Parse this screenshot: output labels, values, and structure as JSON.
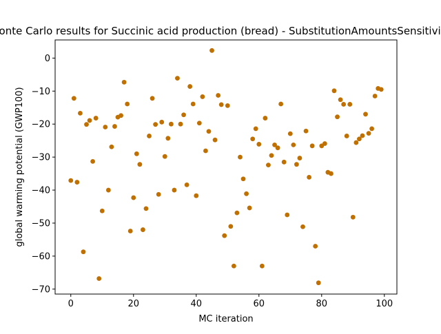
{
  "chart_data": {
    "type": "scatter",
    "title": "Monte Carlo results for Succinic acid production (bread) - SubstitutionAmountsSensitivity",
    "xlabel": "MC iteration",
    "ylabel": "global warming potential (GWP100)",
    "xlim": [
      -5,
      104
    ],
    "ylim": [
      -71.5,
      5.5
    ],
    "xticks": [
      0,
      20,
      40,
      60,
      80,
      100
    ],
    "yticks": [
      0,
      -10,
      -20,
      -30,
      -40,
      -50,
      -60,
      -70
    ],
    "grid": false,
    "legend": "none",
    "marker_color": "#bf7000",
    "series": [
      {
        "x": [
          0,
          1,
          2,
          3,
          4,
          5,
          6,
          7,
          8,
          9,
          10,
          11,
          12,
          13,
          14,
          15,
          16,
          17,
          18,
          19,
          20,
          21,
          22,
          23,
          24,
          25,
          26,
          27,
          28,
          29,
          30,
          31,
          32,
          33,
          34,
          35,
          36,
          37,
          38,
          39,
          40,
          41,
          42,
          43,
          44,
          45,
          46,
          47,
          48,
          49,
          50,
          51,
          52,
          53,
          54,
          55,
          56,
          57,
          58,
          59,
          60,
          61,
          62,
          63,
          64,
          65,
          66,
          67,
          68,
          69,
          70,
          71,
          72,
          73,
          74,
          75,
          76,
          77,
          78,
          79,
          80,
          81,
          82,
          83,
          84,
          85,
          86,
          87,
          88,
          89,
          90,
          91,
          92,
          93,
          94,
          95,
          96,
          97,
          98,
          99
        ],
        "y": [
          -37.1,
          -12.2,
          -37.6,
          -16.7,
          -58.7,
          -20.1,
          -18.9,
          -31.3,
          -18.2,
          -66.8,
          -46.3,
          -20.9,
          -40,
          -26.9,
          -20.7,
          -17.9,
          -17.4,
          -7.3,
          -13.9,
          -52.4,
          -42.3,
          -29,
          -32.2,
          -52,
          -45.6,
          -23.6,
          -12.2,
          -20.1,
          -41.3,
          -19.4,
          -29.8,
          -24.3,
          -20,
          -40,
          -6.1,
          -20,
          -17.2,
          -38.4,
          -8.6,
          -13.9,
          -41.7,
          -19.7,
          -11.7,
          -28.1,
          -22.2,
          2.3,
          -24.8,
          -11.3,
          -14.1,
          -53.8,
          -14.4,
          -51,
          -63,
          -46.9,
          -30,
          -36.6,
          -41.1,
          -45.4,
          -24.5,
          -21.4,
          -26.1,
          -63,
          -18.2,
          -32.4,
          -29.5,
          -26.3,
          -27.2,
          -13.9,
          -31.5,
          -47.5,
          -22.9,
          -26.3,
          -32.2,
          -30.3,
          -51.1,
          -22.1,
          -36.1,
          -26.6,
          -57,
          -68.1,
          -26.6,
          -25.9,
          -34.6,
          -35,
          -9.9,
          -17.8,
          -12.6,
          -14,
          -23.6,
          -14,
          -48.2,
          -25.6,
          -24.5,
          -23.5,
          -17,
          -22.8,
          -21.4,
          -11.5,
          -9.2,
          -9.5
        ]
      }
    ]
  }
}
